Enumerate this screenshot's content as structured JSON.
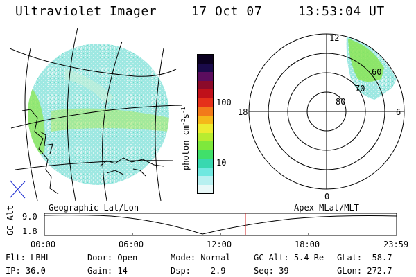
{
  "header": {
    "instrument": "Ultraviolet Imager",
    "date": "17 Oct 07",
    "time": "13:53:04 UT"
  },
  "colorbar": {
    "unit_label": "photon cm",
    "unit_sup1": "-2",
    "unit_mid": "s",
    "unit_sup2": "-1",
    "ticks": [
      "100",
      "10"
    ],
    "colors": [
      "#0b0020",
      "#1a0a4a",
      "#5b0d5e",
      "#8b0a2a",
      "#c0101a",
      "#e5301a",
      "#f27a1a",
      "#f5b81a",
      "#ecec30",
      "#b8ec30",
      "#7ee83c",
      "#40e06a",
      "#38d8b0",
      "#70e8e0",
      "#b8f0f0",
      "#e8f8f8"
    ]
  },
  "polar_plot": {
    "mlt_labels": [
      "12",
      "18",
      "6",
      "0"
    ],
    "mlat_labels": [
      "60",
      "70",
      "80"
    ]
  },
  "timeline": {
    "left_title": "Geographic Lat/Lon",
    "right_title": "Apex MLat/MLT",
    "axis_label": "GC Alt",
    "y_top": "9.0",
    "y_bottom": "1.8",
    "x_ticks": [
      "00:00",
      "06:00",
      "12:00",
      "18:00",
      "23:59"
    ],
    "marker_color": "#d02020"
  },
  "status": {
    "row1": [
      {
        "key": "Flt:",
        "value": "LBHL"
      },
      {
        "key": "Door:",
        "value": "Open"
      },
      {
        "key": "Mode:",
        "value": "Normal"
      },
      {
        "key": "GC Alt:",
        "value": "5.4 Re"
      },
      {
        "key": "GLat:",
        "value": "-58.7"
      }
    ],
    "row2": [
      {
        "key": "IP:",
        "value": "36.0"
      },
      {
        "key": "Gain:",
        "value": "14"
      },
      {
        "key": "Dsp:",
        "value": "-2.9"
      },
      {
        "key": "Seq:",
        "value": "39"
      },
      {
        "key": "GLon:",
        "value": "272.7"
      }
    ]
  }
}
